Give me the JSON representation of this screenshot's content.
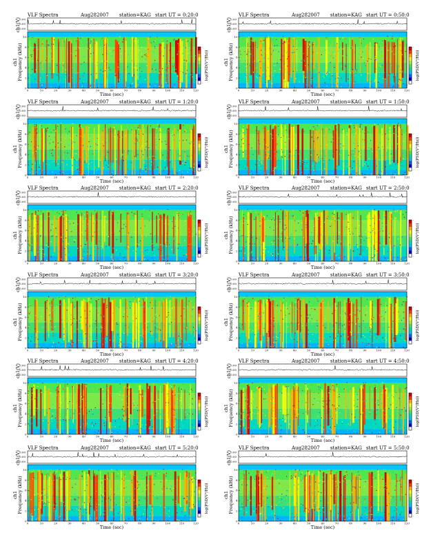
{
  "chart_data": {
    "type": "heatmap",
    "common": {
      "title_left": "VLF Spectra",
      "date": "Aug282007",
      "station": "station=KAG",
      "start_label": "start UT =",
      "ch_label": "ch1(V)",
      "ch_ticks": [
        "0.00",
        "0.00",
        "0.00"
      ],
      "ylabel_top": "ch1",
      "ylabel_bottom": "Frequency (kHz)",
      "xlabel": "Time (sec)",
      "x_ticks": [
        0,
        10,
        20,
        30,
        40,
        50,
        60,
        70,
        80,
        90,
        100,
        110,
        120
      ],
      "y_ticks": [
        0,
        2,
        4,
        6,
        8,
        10
      ],
      "xlim": [
        0,
        120
      ],
      "ylim": [
        0,
        11
      ],
      "colorbar_label": "log(PSD(V²/Hz))",
      "colorbar_ticks": [
        "-",
        "-"
      ],
      "colormap": [
        "#ffffff",
        "#0000c8",
        "#0064ff",
        "#00c8ff",
        "#00e6a0",
        "#50e650",
        "#b4f032",
        "#ffff00",
        "#ffb400",
        "#ff3c00",
        "#d20000"
      ]
    },
    "panels": [
      {
        "start_ut": "0:20:0"
      },
      {
        "start_ut": "0:50:0"
      },
      {
        "start_ut": "1:20:0"
      },
      {
        "start_ut": "1:50:0"
      },
      {
        "start_ut": "2:20:0"
      },
      {
        "start_ut": "2:50:0"
      },
      {
        "start_ut": "3:20:0"
      },
      {
        "start_ut": "3:50:0"
      },
      {
        "start_ut": "4:20:0"
      },
      {
        "start_ut": "4:50:0"
      },
      {
        "start_ut": "5:20:0"
      },
      {
        "start_ut": "5:50:0"
      }
    ]
  }
}
